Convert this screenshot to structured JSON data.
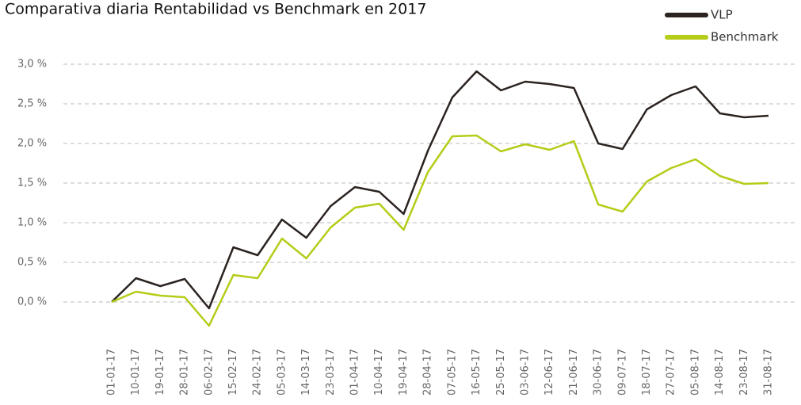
{
  "chart_data": {
    "type": "line",
    "title": "Comparativa diaria Rentabilidad vs Benchmark en 2017",
    "categories": [
      "01-01-17",
      "10-01-17",
      "19-01-17",
      "28-01-17",
      "06-02-17",
      "15-02-17",
      "24-02-17",
      "05-03-17",
      "14-03-17",
      "23-03-17",
      "01-04-17",
      "10-04-17",
      "19-04-17",
      "28-04-17",
      "07-05-17",
      "16-05-17",
      "25-05-17",
      "03-06-17",
      "12-06-17",
      "21-06-17",
      "30-06-17",
      "09-07-17",
      "18-07-17",
      "27-07-17",
      "05-08-17",
      "14-08-17",
      "23-08-17",
      "31-08-17"
    ],
    "series": [
      {
        "name": "VLP",
        "color": "#2b2320",
        "values": [
          0,
          0.3,
          0.2,
          0.29,
          -0.08,
          0.69,
          0.59,
          1.04,
          0.81,
          1.21,
          1.45,
          1.39,
          1.11,
          1.91,
          2.58,
          2.91,
          2.67,
          2.78,
          2.75,
          2.7,
          2.0,
          1.93,
          2.43,
          2.61,
          2.72,
          2.38,
          2.33,
          2.35
        ]
      },
      {
        "name": "Benchmark",
        "color": "#b5cc18",
        "values": [
          0,
          0.13,
          0.08,
          0.06,
          -0.3,
          0.34,
          0.3,
          0.8,
          0.55,
          0.94,
          1.19,
          1.24,
          0.91,
          1.64,
          2.09,
          2.1,
          1.9,
          1.99,
          1.92,
          2.03,
          1.23,
          1.14,
          1.52,
          1.69,
          1.8,
          1.59,
          1.49,
          1.5
        ]
      }
    ],
    "ylim": [
      -0.5,
      3.1
    ],
    "yticks": [
      {
        "value": 0,
        "label": "0,0 %"
      },
      {
        "value": 0.5,
        "label": "0,5 %"
      },
      {
        "value": 1,
        "label": "1,0 %"
      },
      {
        "value": 1.5,
        "label": "1,5 %"
      },
      {
        "value": 2,
        "label": "2,0 %"
      },
      {
        "value": 2.5,
        "label": "2,5 %"
      },
      {
        "value": 3,
        "label": "3,0 %"
      }
    ],
    "grid": true,
    "legend": "top-right"
  }
}
